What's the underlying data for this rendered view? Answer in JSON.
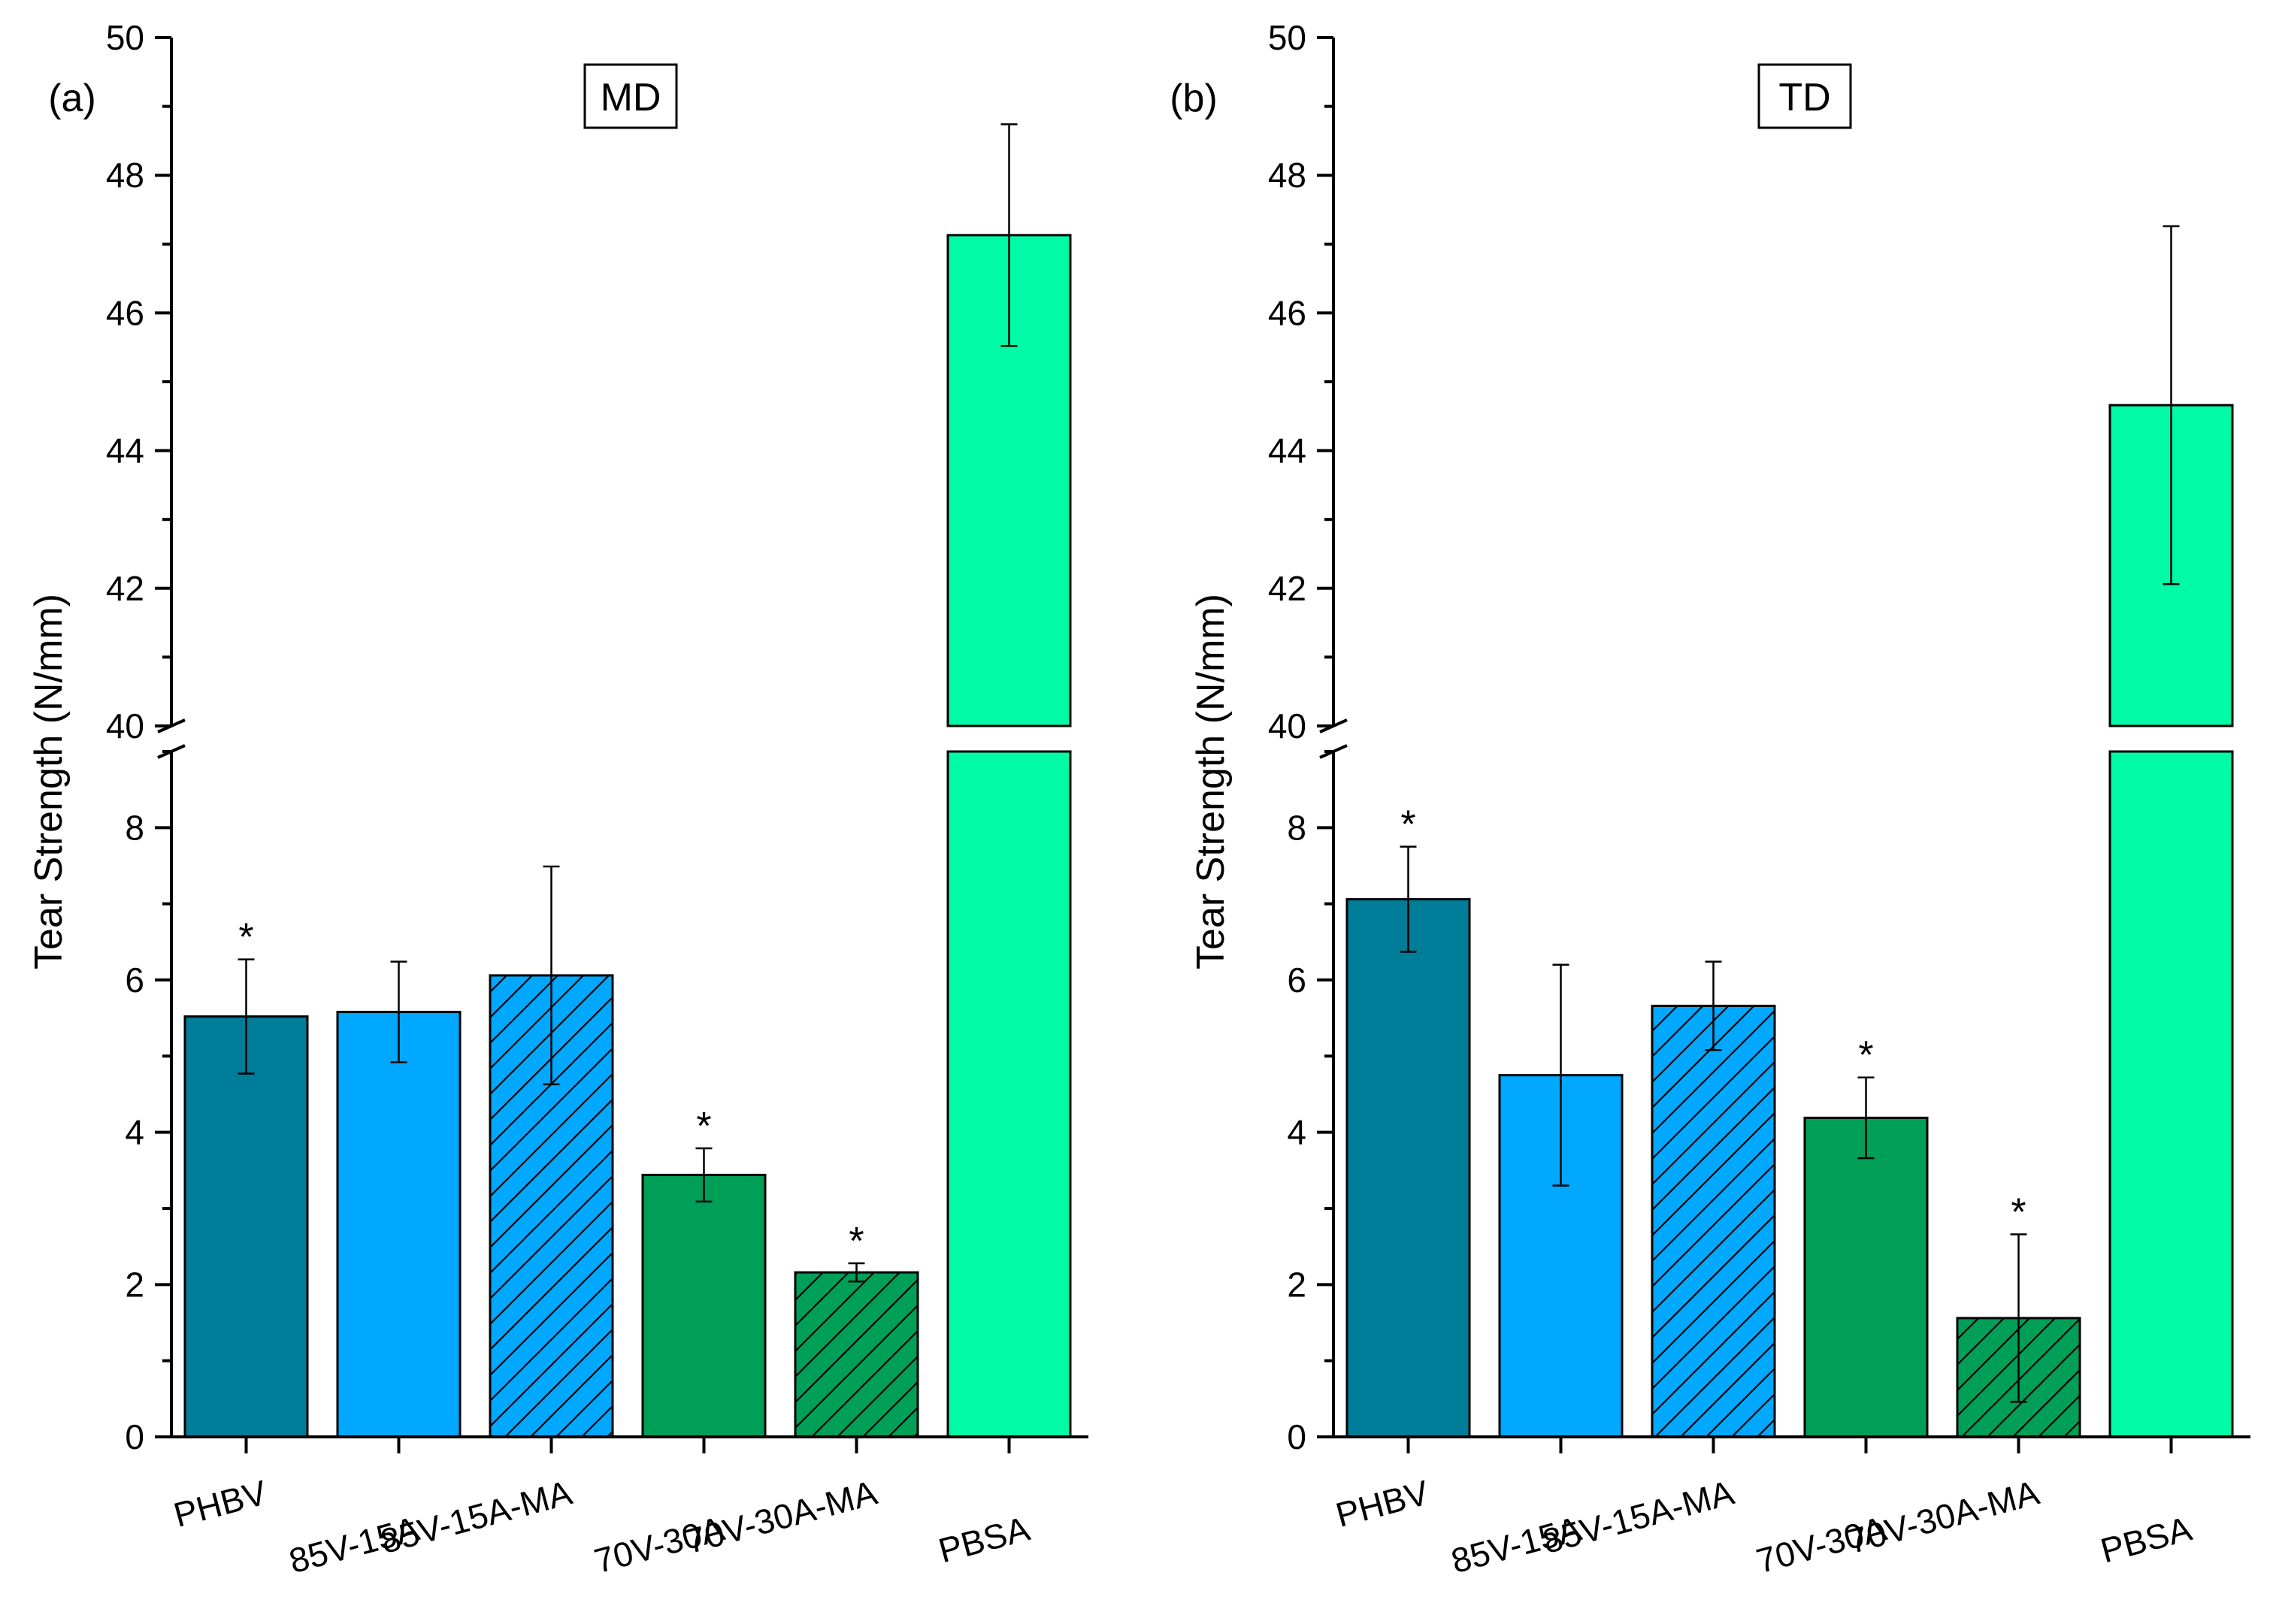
{
  "colors": {
    "phbv": "#007D99",
    "v85a15": "#00A8FF",
    "v70a30": "#009F57",
    "pbsa": "#00FAA5",
    "hatch": "#000000"
  },
  "chart_data": [
    {
      "type": "bar",
      "panel_label": "(a)",
      "title": "MD",
      "ylabel": "Tear Strength (N/mm)",
      "xlabel": "",
      "categories": [
        "PHBV",
        "85V-15A",
        "85V-15A-MA",
        "70V-30A",
        "70V-30A-MA",
        "PBSA"
      ],
      "values": [
        5.52,
        5.58,
        6.06,
        3.44,
        2.16,
        47.13
      ],
      "errors": [
        0.75,
        0.66,
        1.43,
        0.35,
        0.12,
        1.61
      ],
      "significant": [
        true,
        false,
        false,
        true,
        true,
        false
      ],
      "hatched": [
        false,
        false,
        true,
        false,
        true,
        false
      ],
      "color_keys": [
        "phbv",
        "v85a15",
        "v85a15",
        "v70a30",
        "v70a30",
        "pbsa"
      ],
      "broken_axis": true,
      "lower_ylim": [
        0,
        9
      ],
      "upper_ylim": [
        40,
        50
      ],
      "lower_ticks": [
        "0",
        "2",
        "4",
        "6",
        "8"
      ],
      "upper_ticks": [
        "40",
        "42",
        "44",
        "46",
        "48",
        "50"
      ],
      "significance_marker": "*",
      "grid": false
    },
    {
      "type": "bar",
      "panel_label": "(b)",
      "title": "TD",
      "ylabel": "Tear Strength (N/mm)",
      "xlabel": "",
      "categories": [
        "PHBV",
        "85V-15A",
        "85V-15A-MA",
        "70V-30A",
        "70V-30A-MA",
        "PBSA"
      ],
      "values": [
        7.06,
        4.75,
        5.66,
        4.19,
        1.56,
        44.66
      ],
      "errors": [
        0.69,
        1.45,
        0.58,
        0.53,
        1.1,
        2.6
      ],
      "significant": [
        true,
        false,
        false,
        true,
        true,
        false
      ],
      "hatched": [
        false,
        false,
        true,
        false,
        true,
        false
      ],
      "color_keys": [
        "phbv",
        "v85a15",
        "v85a15",
        "v70a30",
        "v70a30",
        "pbsa"
      ],
      "broken_axis": true,
      "lower_ylim": [
        0,
        9
      ],
      "upper_ylim": [
        40,
        50
      ],
      "lower_ticks": [
        "0",
        "2",
        "4",
        "6",
        "8"
      ],
      "upper_ticks": [
        "40",
        "42",
        "44",
        "46",
        "48",
        "50"
      ],
      "significance_marker": "*",
      "grid": false
    }
  ]
}
